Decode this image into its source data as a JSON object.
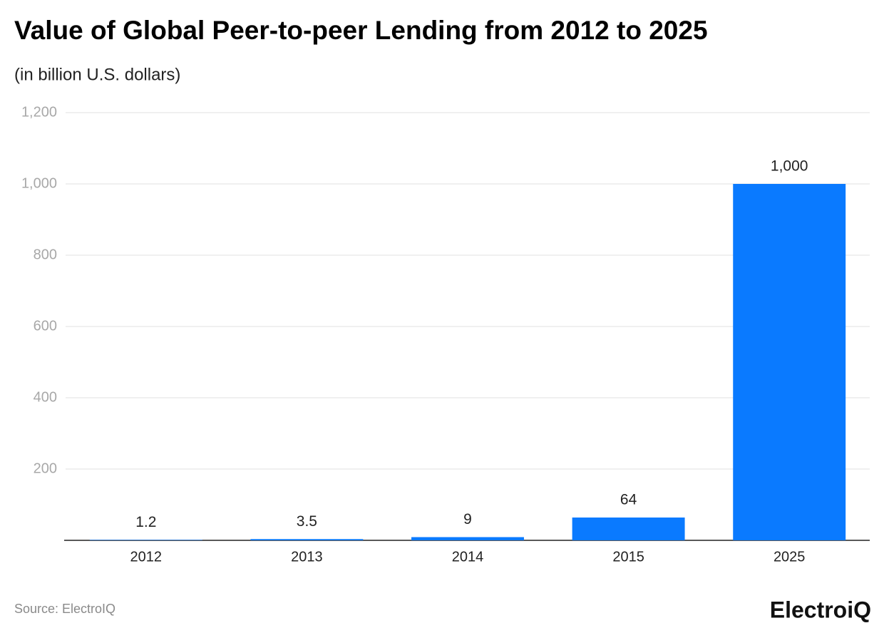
{
  "chart_data": {
    "type": "bar",
    "title": "Value of Global Peer-to-peer Lending from 2012 to 2025",
    "subtitle": "(in billion U.S. dollars)",
    "categories": [
      "2012",
      "2013",
      "2014",
      "2015",
      "2025"
    ],
    "values": [
      1.2,
      3.5,
      9,
      64,
      1000
    ],
    "value_labels": [
      "1.2",
      "3.5",
      "9",
      "64",
      "1,000"
    ],
    "color": "#0a7aff",
    "ylim": [
      0,
      1200
    ],
    "yticks": [
      200,
      400,
      600,
      800,
      {
        "value": 1000,
        "label": "1,000"
      },
      {
        "value": 1200,
        "label": "1,200"
      }
    ],
    "grid": true,
    "source": "Source: ElectroIQ",
    "logo": "ElectroiQ"
  }
}
